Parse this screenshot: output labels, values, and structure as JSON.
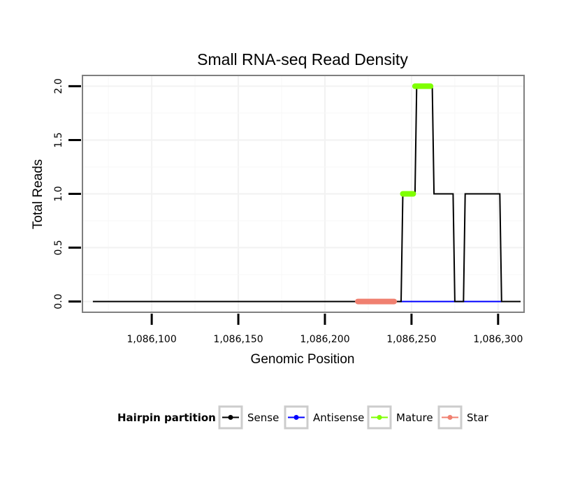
{
  "chart_data": {
    "type": "line",
    "title": "Small RNA-seq Read Density",
    "xlabel": "Genomic Position",
    "ylabel": "Total Reads",
    "xlim": [
      1086060,
      1086315
    ],
    "ylim": [
      -0.1,
      2.1
    ],
    "xticks": [
      1086100,
      1086150,
      1086200,
      1086250,
      1086300
    ],
    "xtick_labels": [
      "1,086,100",
      "1,086,150",
      "1,086,200",
      "1,086,250",
      "1,086,300"
    ],
    "yticks": [
      0,
      0.5,
      1,
      1.5,
      2
    ],
    "ytick_labels": [
      "0.0",
      "0.5",
      "1.0",
      "1.5",
      "2.0"
    ],
    "grid": true,
    "legend": {
      "title": "Hairpin partition",
      "position": "bottom",
      "entries": [
        {
          "name": "Sense",
          "color": "#000000"
        },
        {
          "name": "Antisense",
          "color": "#0000FF"
        },
        {
          "name": "Mature",
          "color": "#7FFF00"
        },
        {
          "name": "Star",
          "color": "#F08070"
        }
      ]
    },
    "series": [
      {
        "name": "Antisense",
        "color": "#0000FF",
        "style": "line",
        "x": [
          1086243,
          1086302
        ],
        "y": [
          0,
          0
        ]
      },
      {
        "name": "Sense",
        "color": "#000000",
        "style": "line",
        "x": [
          1086066,
          1086244,
          1086245,
          1086252,
          1086253,
          1086262,
          1086263,
          1086274,
          1086275,
          1086280,
          1086281,
          1086301,
          1086302,
          1086313
        ],
        "y": [
          0,
          0,
          1,
          1,
          2,
          2,
          1,
          1,
          0,
          0,
          1,
          1,
          0,
          0
        ]
      },
      {
        "name": "Star",
        "color": "#F08070",
        "style": "thick",
        "x": [
          1086219,
          1086240
        ],
        "y": [
          0,
          0
        ]
      },
      {
        "name": "Mature",
        "color": "#7FFF00",
        "style": "thick",
        "segments": [
          {
            "x": [
              1086245,
              1086251
            ],
            "y": [
              1,
              1
            ]
          },
          {
            "x": [
              1086252,
              1086261
            ],
            "y": [
              2,
              2
            ]
          }
        ]
      }
    ]
  }
}
